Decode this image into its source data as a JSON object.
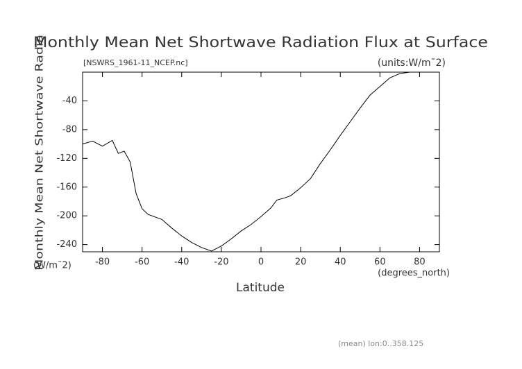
{
  "chart_data": {
    "type": "line",
    "title": "Monthly Mean Net Shortwave Radiation Flux at Surface",
    "subtitle": "[NSWRS_1961-11_NCEP.nc]",
    "units_label": "(units:W/m¯2)",
    "y_label": "Monthly Mean Net Shortwave Radia",
    "y_units": "(W/m¯2)",
    "x_label": "Latitude",
    "x_units": "(degrees_north)",
    "footer": "(mean) lon:0..358.125",
    "x": [
      -90,
      -85,
      -80,
      -75,
      -72,
      -69,
      -66,
      -63,
      -60,
      -57,
      -50,
      -45,
      -40,
      -35,
      -30,
      -25,
      -20,
      -15,
      -10,
      -5,
      0,
      5,
      8,
      12,
      15,
      20,
      25,
      30,
      35,
      40,
      45,
      50,
      55,
      60,
      65,
      70,
      75,
      80,
      85,
      90
    ],
    "series": [
      {
        "color": "#000000",
        "values": [
          -100,
          -96,
          -103,
          -95,
          -113,
          -110,
          -125,
          -169,
          -190,
          -198,
          -205,
          -217,
          -228,
          -237,
          -244,
          -249,
          -242,
          -232,
          -221,
          -212,
          -201,
          -189,
          -178,
          -175,
          -172,
          -161,
          -148,
          -127,
          -108,
          -88,
          -69,
          -50,
          -32,
          -20,
          -8,
          -2,
          0,
          0,
          0,
          0
        ]
      }
    ],
    "xlim": [
      -90,
      90
    ],
    "xticks": [
      -80,
      -60,
      -40,
      -20,
      0,
      20,
      40,
      60,
      80
    ],
    "ylim": [
      -250,
      0
    ],
    "yticks": [
      -240,
      -200,
      -160,
      -120,
      -80,
      -40
    ]
  }
}
